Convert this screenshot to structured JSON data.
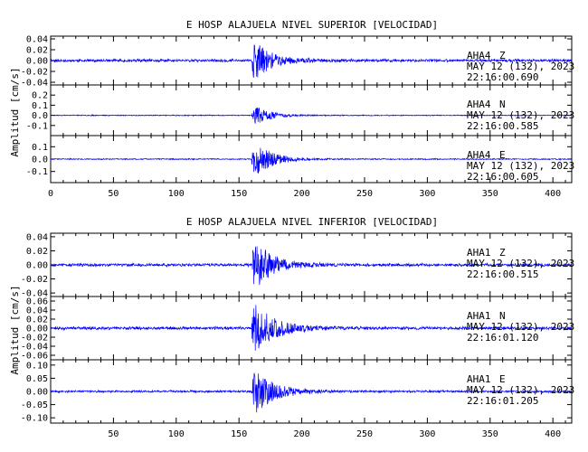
{
  "figure": {
    "trace_color": "#0000ff",
    "axis_color": "#000000"
  },
  "chart_data": [
    {
      "type": "line",
      "title": "E HOSP ALAJUELA NIVEL SUPERIOR [VELOCIDAD]",
      "ylabel": "Amplitud [cm/s]",
      "xlim": [
        0,
        415
      ],
      "x_ticks": [
        "0",
        "50",
        "100",
        "150",
        "200",
        "250",
        "300",
        "350",
        "400"
      ],
      "x_tick_values": [
        0,
        50,
        100,
        150,
        200,
        250,
        300,
        350,
        400
      ],
      "series": [
        {
          "name": "Z",
          "station": "AHA4",
          "component": "Z",
          "date": "MAY 12 (132), 2023",
          "time": "22:16:00.690",
          "ylim": [
            -0.045,
            0.045
          ],
          "yticks": [
            "0.04",
            "0.02",
            "0.00",
            "-0.02",
            "-0.04"
          ],
          "ytick_values": [
            0.04,
            0.02,
            0.0,
            -0.02,
            -0.04
          ],
          "onset": 160,
          "peak": 0.044,
          "noise": 0.0022,
          "decay": 13,
          "seed": 11
        },
        {
          "name": "N",
          "station": "AHA4",
          "component": "N",
          "date": "MAY 12 (132), 2023",
          "time": "22:16:00.585",
          "ylim": [
            -0.2,
            0.3
          ],
          "yticks": [
            "0.2",
            "0.1",
            "0.0",
            "-0.1"
          ],
          "ytick_values": [
            0.2,
            0.1,
            0.0,
            -0.1
          ],
          "onset": 160,
          "peak": 0.12,
          "noise": 0.004,
          "decay": 12,
          "seed": 23
        },
        {
          "name": "E",
          "station": "AHA4",
          "component": "E",
          "date": "MAY 12 (132), 2023",
          "time": "22:16:00.605",
          "ylim": [
            -0.19,
            0.19
          ],
          "yticks": [
            "0.1",
            "0.0",
            "-0.1"
          ],
          "ytick_values": [
            0.1,
            0.0,
            -0.1
          ],
          "onset": 160,
          "peak": 0.17,
          "noise": 0.004,
          "decay": 14,
          "seed": 37
        }
      ]
    },
    {
      "type": "line",
      "title": "E HOSP ALAJUELA NIVEL INFERIOR [VELOCIDAD]",
      "ylabel": "Amplitud [cm/s]",
      "xlim": [
        0,
        415
      ],
      "x_ticks": [
        "50",
        "100",
        "150",
        "200",
        "250",
        "300",
        "350",
        "400"
      ],
      "x_tick_values": [
        50,
        100,
        150,
        200,
        250,
        300,
        350,
        400
      ],
      "series": [
        {
          "name": "Z",
          "station": "AHA1",
          "component": "Z",
          "date": "MAY 12 (132), 2023",
          "time": "22:16:00.515",
          "ylim": [
            -0.045,
            0.045
          ],
          "yticks": [
            "0.04",
            "0.02",
            "0.00",
            "-0.02",
            "-0.04"
          ],
          "ytick_values": [
            0.04,
            0.02,
            0.0,
            -0.02,
            -0.04
          ],
          "onset": 160,
          "peak": 0.043,
          "noise": 0.0018,
          "decay": 14,
          "seed": 53
        },
        {
          "name": "N",
          "station": "AHA1",
          "component": "N",
          "date": "MAY 12 (132), 2023",
          "time": "22:16:01.120",
          "ylim": [
            -0.07,
            0.07
          ],
          "yticks": [
            "0.06",
            "0.04",
            "0.02",
            "0.00",
            "-0.02",
            "-0.04",
            "-0.06"
          ],
          "ytick_values": [
            0.06,
            0.04,
            0.02,
            0.0,
            -0.02,
            -0.04,
            -0.06
          ],
          "onset": 160,
          "peak": 0.066,
          "noise": 0.0028,
          "decay": 16,
          "seed": 71
        },
        {
          "name": "E",
          "station": "AHA1",
          "component": "E",
          "date": "MAY 12 (132), 2023",
          "time": "22:16:01.205",
          "ylim": [
            -0.12,
            0.12
          ],
          "yticks": [
            "0.10",
            "0.05",
            "0.00",
            "-0.05",
            "-0.10"
          ],
          "ytick_values": [
            0.1,
            0.05,
            0.0,
            -0.05,
            -0.1
          ],
          "onset": 160,
          "peak": 0.11,
          "noise": 0.0035,
          "decay": 15,
          "seed": 89
        }
      ]
    }
  ]
}
